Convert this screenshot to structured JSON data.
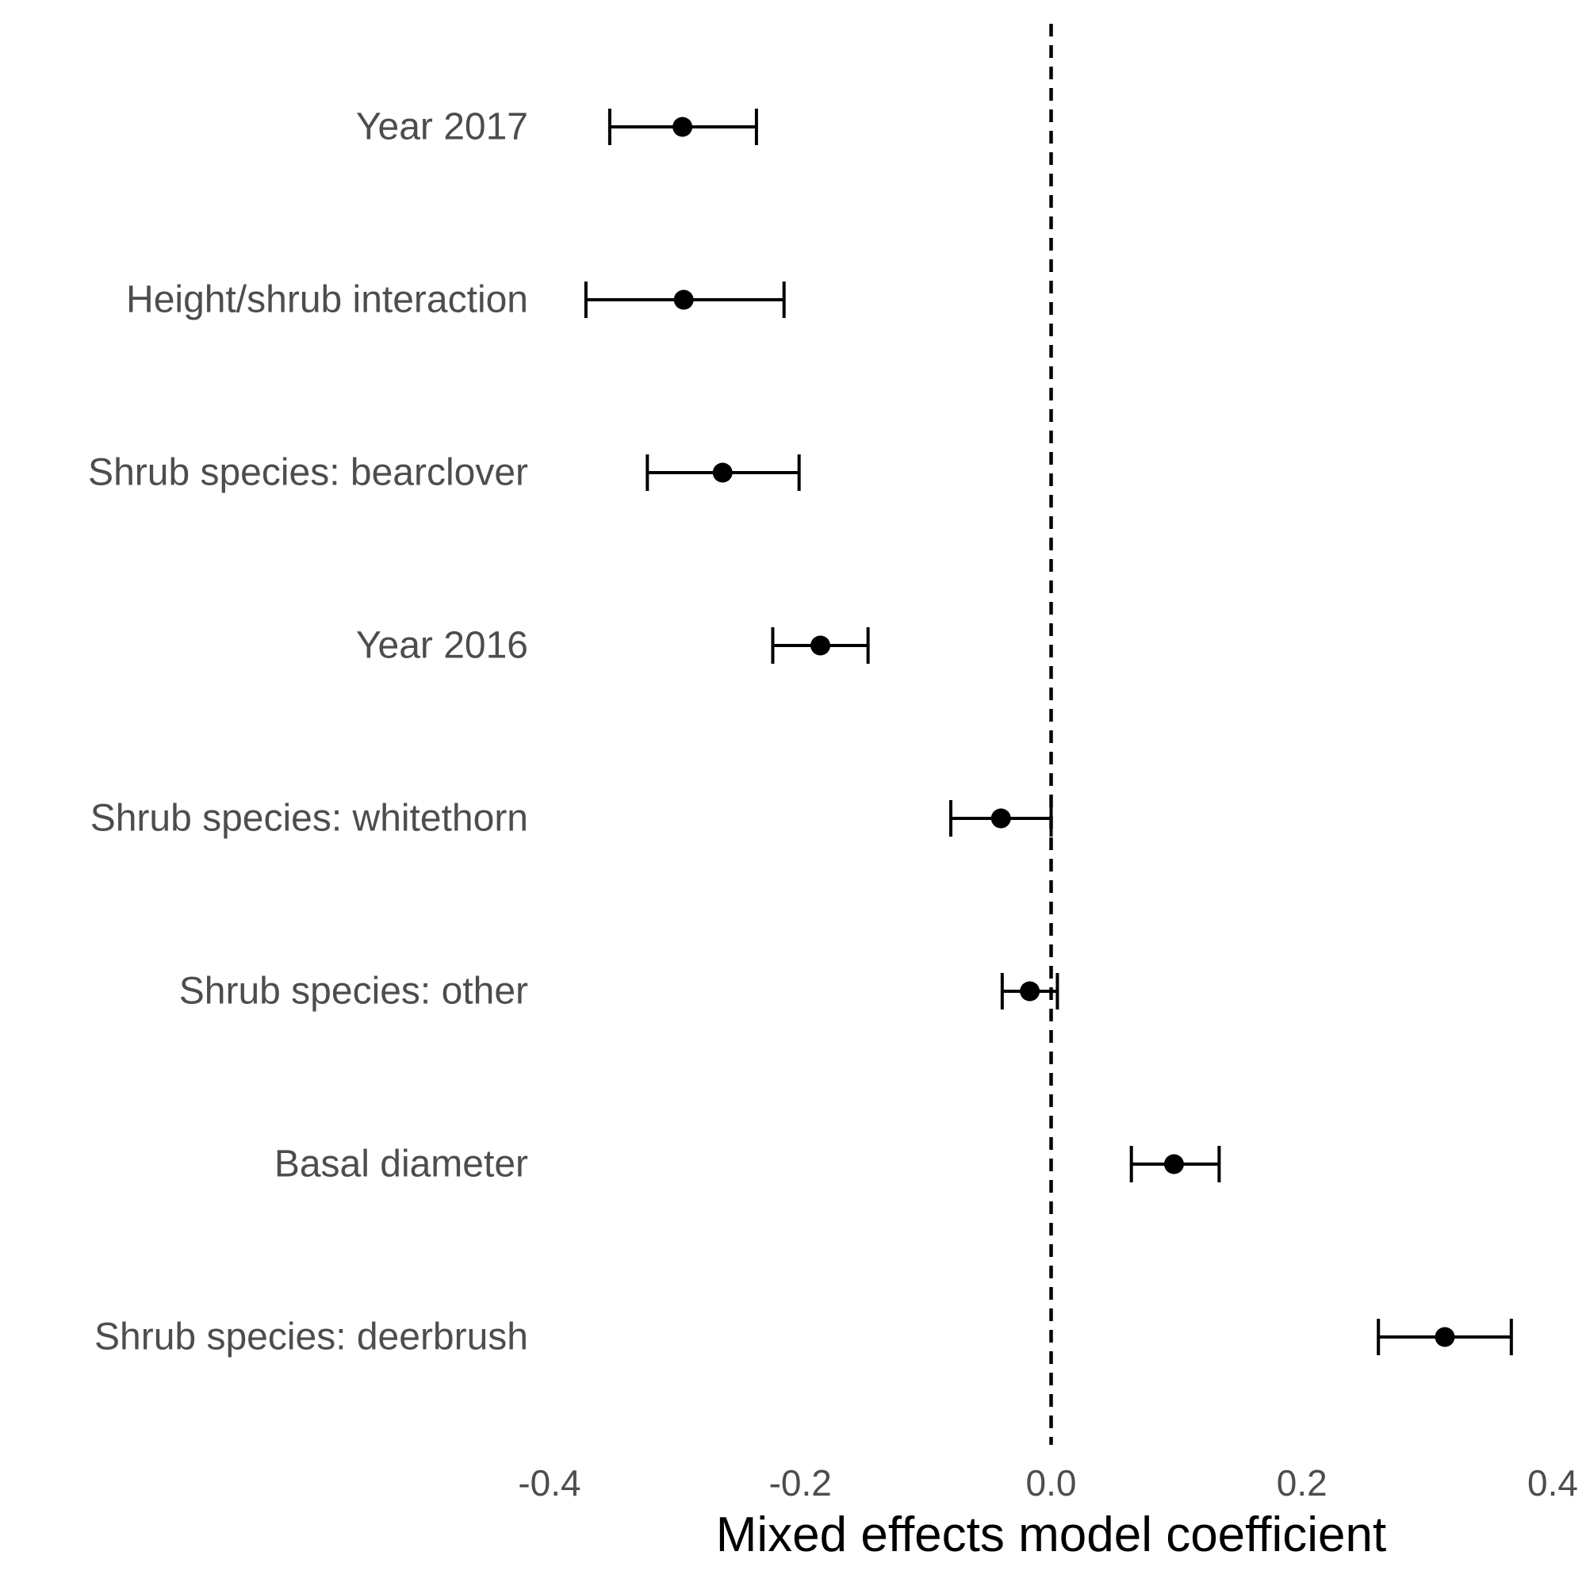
{
  "chart_data": {
    "type": "scatter",
    "title": "",
    "xlabel": "Mixed effects model coefficient",
    "ylabel": "",
    "xlim": [
      -0.4,
      0.4
    ],
    "xticks": [
      -0.4,
      -0.2,
      0.0,
      0.2,
      0.4
    ],
    "xtick_labels": [
      "-0.4",
      "-0.2",
      "0.0",
      "0.2",
      "0.4"
    ],
    "reference_line": 0.0,
    "grid": false,
    "legend": "none",
    "marker_color": "#000000",
    "categories": [
      "Year 2017",
      "Height/shrub interaction",
      "Shrub species: bearclover",
      "Year 2016",
      "Shrub species: whitethorn",
      "Shrub species: other",
      "Basal diameter",
      "Shrub species: deerbrush"
    ],
    "values": [
      -0.294,
      -0.293,
      -0.262,
      -0.184,
      -0.04,
      -0.017,
      0.098,
      0.314
    ],
    "lower": [
      -0.352,
      -0.371,
      -0.322,
      -0.222,
      -0.08,
      -0.039,
      0.064,
      0.261
    ],
    "upper": [
      -0.235,
      -0.213,
      -0.201,
      -0.146,
      0.0,
      0.005,
      0.134,
      0.367
    ]
  }
}
